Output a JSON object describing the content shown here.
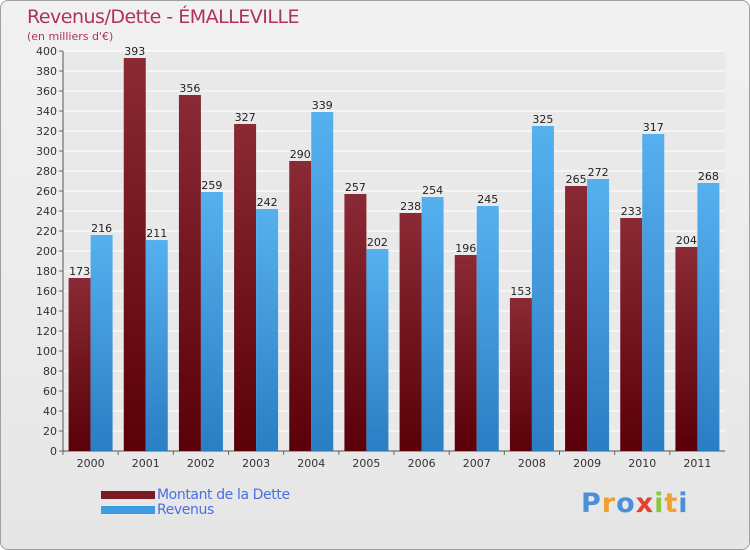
{
  "header": {
    "title": "Revenus/Dette - ÉMALLEVILLE",
    "subtitle": "(en milliers d'€)"
  },
  "colors": {
    "dette": "#7a1a24",
    "revenus": "#3d9be4",
    "title": "#b03060",
    "legend_text": "#4a6fe0"
  },
  "legend": {
    "items": [
      {
        "label": "Montant de la Dette",
        "color": "#7a1a24"
      },
      {
        "label": "Revenus",
        "color": "#3d9be4"
      }
    ]
  },
  "logo": {
    "text": "Proxiti",
    "letters": [
      {
        "ch": "P",
        "color": "#4a90d9"
      },
      {
        "ch": "r",
        "color": "#f0a030"
      },
      {
        "ch": "o",
        "color": "#4a90d9"
      },
      {
        "ch": "x",
        "color": "#e84030"
      },
      {
        "ch": "i",
        "color": "#8cc63f"
      },
      {
        "ch": "t",
        "color": "#f0a030"
      },
      {
        "ch": "i",
        "color": "#4a90d9"
      }
    ]
  },
  "chart_data": {
    "type": "bar",
    "categories": [
      "2000",
      "2001",
      "2002",
      "2003",
      "2004",
      "2005",
      "2006",
      "2007",
      "2008",
      "2009",
      "2010",
      "2011"
    ],
    "series": [
      {
        "name": "Montant de la Dette",
        "values": [
          173,
          393,
          356,
          327,
          290,
          257,
          238,
          196,
          153,
          265,
          233,
          204
        ]
      },
      {
        "name": "Revenus",
        "values": [
          216,
          211,
          259,
          242,
          339,
          202,
          254,
          245,
          325,
          272,
          317,
          268
        ]
      }
    ],
    "ylim": [
      0,
      400
    ],
    "ytick_step": 20,
    "grid": true,
    "legend_position": "bottom-left"
  }
}
